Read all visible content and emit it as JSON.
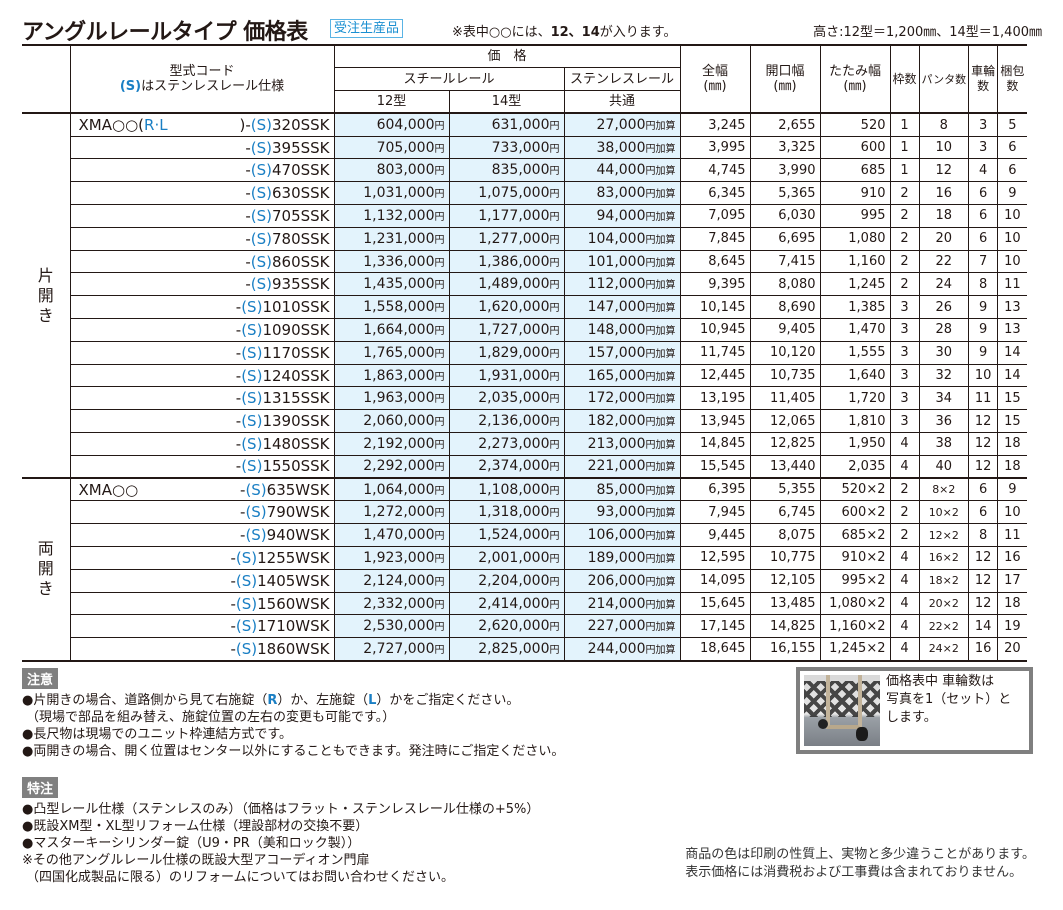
{
  "header": {
    "title": "アングルレールタイプ 価格表",
    "badge": "受注生産品",
    "note_prefix": "※表中○○には、",
    "note_bold": "12、14",
    "note_suffix": "が入ります。",
    "height_note": "高さ:12型＝1,200㎜、14型＝1,400㎜"
  },
  "table": {
    "headers": {
      "model_line1": "型式コード",
      "model_line2_s": "(S)",
      "model_line2_rest": "はステンレスレール仕様",
      "price": "価　格",
      "steel_rail": "スチールレール",
      "stainless_rail": "ステンレスレール",
      "type12": "12型",
      "type14": "14型",
      "common": "共通",
      "total_width": "全幅",
      "opening_width": "開口幅",
      "folded_width": "たたみ幅",
      "unit_mm": "(㎜)",
      "frames": "枠数",
      "pantographs": "パンタ数",
      "wheels_1": "車輪",
      "wheels_2": "数",
      "packages_1": "梱包",
      "packages_2": "数"
    },
    "yen": "円",
    "addon_suffix": "円加算",
    "groups": [
      {
        "category": [
          "片",
          "開",
          "き"
        ],
        "rows": [
          {
            "prefix": "XMA○○(",
            "rl": "R·L",
            "mid": ")-",
            "s": "(S)",
            "code": "320SSK",
            "p12": "604,000",
            "p14": "631,000",
            "addon": "27,000",
            "total": "3,245",
            "open": "2,655",
            "fold": "520",
            "frames": "1",
            "panta": "8",
            "wheels": "3",
            "packs": "5"
          },
          {
            "prefix": "",
            "rl": "",
            "mid": "-",
            "s": "(S)",
            "code": "395SSK",
            "p12": "705,000",
            "p14": "733,000",
            "addon": "38,000",
            "total": "3,995",
            "open": "3,325",
            "fold": "600",
            "frames": "1",
            "panta": "10",
            "wheels": "3",
            "packs": "6"
          },
          {
            "prefix": "",
            "rl": "",
            "mid": "-",
            "s": "(S)",
            "code": "470SSK",
            "p12": "803,000",
            "p14": "835,000",
            "addon": "44,000",
            "total": "4,745",
            "open": "3,990",
            "fold": "685",
            "frames": "1",
            "panta": "12",
            "wheels": "4",
            "packs": "6"
          },
          {
            "prefix": "",
            "rl": "",
            "mid": "-",
            "s": "(S)",
            "code": "630SSK",
            "p12": "1,031,000",
            "p14": "1,075,000",
            "addon": "83,000",
            "total": "6,345",
            "open": "5,365",
            "fold": "910",
            "frames": "2",
            "panta": "16",
            "wheels": "6",
            "packs": "9"
          },
          {
            "prefix": "",
            "rl": "",
            "mid": "-",
            "s": "(S)",
            "code": "705SSK",
            "p12": "1,132,000",
            "p14": "1,177,000",
            "addon": "94,000",
            "total": "7,095",
            "open": "6,030",
            "fold": "995",
            "frames": "2",
            "panta": "18",
            "wheels": "6",
            "packs": "10"
          },
          {
            "prefix": "",
            "rl": "",
            "mid": "-",
            "s": "(S)",
            "code": "780SSK",
            "p12": "1,231,000",
            "p14": "1,277,000",
            "addon": "104,000",
            "total": "7,845",
            "open": "6,695",
            "fold": "1,080",
            "frames": "2",
            "panta": "20",
            "wheels": "6",
            "packs": "10"
          },
          {
            "prefix": "",
            "rl": "",
            "mid": "-",
            "s": "(S)",
            "code": "860SSK",
            "p12": "1,336,000",
            "p14": "1,386,000",
            "addon": "101,000",
            "total": "8,645",
            "open": "7,415",
            "fold": "1,160",
            "frames": "2",
            "panta": "22",
            "wheels": "7",
            "packs": "10"
          },
          {
            "prefix": "",
            "rl": "",
            "mid": "-",
            "s": "(S)",
            "code": "935SSK",
            "p12": "1,435,000",
            "p14": "1,489,000",
            "addon": "112,000",
            "total": "9,395",
            "open": "8,080",
            "fold": "1,245",
            "frames": "2",
            "panta": "24",
            "wheels": "8",
            "packs": "11"
          },
          {
            "prefix": "",
            "rl": "",
            "mid": "-",
            "s": "(S)",
            "code": "1010SSK",
            "p12": "1,558,000",
            "p14": "1,620,000",
            "addon": "147,000",
            "total": "10,145",
            "open": "8,690",
            "fold": "1,385",
            "frames": "3",
            "panta": "26",
            "wheels": "9",
            "packs": "13"
          },
          {
            "prefix": "",
            "rl": "",
            "mid": "-",
            "s": "(S)",
            "code": "1090SSK",
            "p12": "1,664,000",
            "p14": "1,727,000",
            "addon": "148,000",
            "total": "10,945",
            "open": "9,405",
            "fold": "1,470",
            "frames": "3",
            "panta": "28",
            "wheels": "9",
            "packs": "13"
          },
          {
            "prefix": "",
            "rl": "",
            "mid": "-",
            "s": "(S)",
            "code": "1170SSK",
            "p12": "1,765,000",
            "p14": "1,829,000",
            "addon": "157,000",
            "total": "11,745",
            "open": "10,120",
            "fold": "1,555",
            "frames": "3",
            "panta": "30",
            "wheels": "9",
            "packs": "14"
          },
          {
            "prefix": "",
            "rl": "",
            "mid": "-",
            "s": "(S)",
            "code": "1240SSK",
            "p12": "1,863,000",
            "p14": "1,931,000",
            "addon": "165,000",
            "total": "12,445",
            "open": "10,735",
            "fold": "1,640",
            "frames": "3",
            "panta": "32",
            "wheels": "10",
            "packs": "14"
          },
          {
            "prefix": "",
            "rl": "",
            "mid": "-",
            "s": "(S)",
            "code": "1315SSK",
            "p12": "1,963,000",
            "p14": "2,035,000",
            "addon": "172,000",
            "total": "13,195",
            "open": "11,405",
            "fold": "1,720",
            "frames": "3",
            "panta": "34",
            "wheels": "11",
            "packs": "15"
          },
          {
            "prefix": "",
            "rl": "",
            "mid": "-",
            "s": "(S)",
            "code": "1390SSK",
            "p12": "2,060,000",
            "p14": "2,136,000",
            "addon": "182,000",
            "total": "13,945",
            "open": "12,065",
            "fold": "1,810",
            "frames": "3",
            "panta": "36",
            "wheels": "12",
            "packs": "15"
          },
          {
            "prefix": "",
            "rl": "",
            "mid": "-",
            "s": "(S)",
            "code": "1480SSK",
            "p12": "2,192,000",
            "p14": "2,273,000",
            "addon": "213,000",
            "total": "14,845",
            "open": "12,825",
            "fold": "1,950",
            "frames": "4",
            "panta": "38",
            "wheels": "12",
            "packs": "18"
          },
          {
            "prefix": "",
            "rl": "",
            "mid": "-",
            "s": "(S)",
            "code": "1550SSK",
            "p12": "2,292,000",
            "p14": "2,374,000",
            "addon": "221,000",
            "total": "15,545",
            "open": "13,440",
            "fold": "2,035",
            "frames": "4",
            "panta": "40",
            "wheels": "12",
            "packs": "18"
          }
        ]
      },
      {
        "category": [
          "両",
          "開",
          "き"
        ],
        "rows": [
          {
            "prefix": "XMA○○",
            "rl": "",
            "mid": "-",
            "s": "(S)",
            "code": "635WSK",
            "p12": "1,064,000",
            "p14": "1,108,000",
            "addon": "85,000",
            "total": "6,395",
            "open": "5,355",
            "fold": "520×2",
            "frames": "2",
            "panta": "8×2",
            "wheels": "6",
            "packs": "9"
          },
          {
            "prefix": "",
            "rl": "",
            "mid": "-",
            "s": "(S)",
            "code": "790WSK",
            "p12": "1,272,000",
            "p14": "1,318,000",
            "addon": "93,000",
            "total": "7,945",
            "open": "6,745",
            "fold": "600×2",
            "frames": "2",
            "panta": "10×2",
            "wheels": "6",
            "packs": "10"
          },
          {
            "prefix": "",
            "rl": "",
            "mid": "-",
            "s": "(S)",
            "code": "940WSK",
            "p12": "1,470,000",
            "p14": "1,524,000",
            "addon": "106,000",
            "total": "9,445",
            "open": "8,075",
            "fold": "685×2",
            "frames": "2",
            "panta": "12×2",
            "wheels": "8",
            "packs": "11"
          },
          {
            "prefix": "",
            "rl": "",
            "mid": "-",
            "s": "(S)",
            "code": "1255WSK",
            "p12": "1,923,000",
            "p14": "2,001,000",
            "addon": "189,000",
            "total": "12,595",
            "open": "10,775",
            "fold": "910×2",
            "frames": "4",
            "panta": "16×2",
            "wheels": "12",
            "packs": "16"
          },
          {
            "prefix": "",
            "rl": "",
            "mid": "-",
            "s": "(S)",
            "code": "1405WSK",
            "p12": "2,124,000",
            "p14": "2,204,000",
            "addon": "206,000",
            "total": "14,095",
            "open": "12,105",
            "fold": "995×2",
            "frames": "4",
            "panta": "18×2",
            "wheels": "12",
            "packs": "17"
          },
          {
            "prefix": "",
            "rl": "",
            "mid": "-",
            "s": "(S)",
            "code": "1560WSK",
            "p12": "2,332,000",
            "p14": "2,414,000",
            "addon": "214,000",
            "total": "15,645",
            "open": "13,485",
            "fold": "1,080×2",
            "frames": "4",
            "panta": "20×2",
            "wheels": "12",
            "packs": "18"
          },
          {
            "prefix": "",
            "rl": "",
            "mid": "-",
            "s": "(S)",
            "code": "1710WSK",
            "p12": "2,530,000",
            "p14": "2,620,000",
            "addon": "227,000",
            "total": "17,145",
            "open": "14,825",
            "fold": "1,160×2",
            "frames": "4",
            "panta": "22×2",
            "wheels": "14",
            "packs": "19"
          },
          {
            "prefix": "",
            "rl": "",
            "mid": "-",
            "s": "(S)",
            "code": "1860WSK",
            "p12": "2,727,000",
            "p14": "2,825,000",
            "addon": "244,000",
            "total": "18,645",
            "open": "16,155",
            "fold": "1,245×2",
            "frames": "4",
            "panta": "24×2",
            "wheels": "16",
            "packs": "20"
          }
        ]
      }
    ]
  },
  "caution": {
    "label": "注意",
    "lines": [
      {
        "a": "●片開きの場合、道路側から見て右施錠（",
        "b": "R",
        "c": "）か、左施錠（",
        "d": "L",
        "e": "）かをご指定ください。"
      },
      {
        "a": "（現場で部品を組み替え、施錠位置の左右の変更も可能です。）"
      },
      {
        "a": "●長尺物は現場でのユニット枠連結方式です。"
      },
      {
        "a": "●両開きの場合、開く位置はセンター以外にすることもできます。発注時にご指定ください。"
      }
    ]
  },
  "special": {
    "label": "特注",
    "lines": [
      "●凸型レール仕様（ステンレスのみ）（価格はフラット・ステンレスレール仕様の+5%）",
      "●既設XM型・XL型リフォーム仕様（埋設部材の交換不要）",
      "●マスターキーシリンダー錠（U9・PR（美和ロック製））",
      "※その他アングルレール仕様の既設大型アコーディオン門扉",
      "（四国化成製品に限る）のリフォームについてはお問い合わせください。"
    ]
  },
  "photo_note": {
    "lines": [
      "価格表中 車輪数は",
      "写真を1（セット）と",
      "します。"
    ]
  },
  "footer": {
    "lines": [
      "商品の色は印刷の性質上、実物と多少違うことがあります。",
      "表示価格には消費税および工事費は含まれておりません。"
    ]
  },
  "colors": {
    "accent_blue": "#1a7fc4",
    "price_bg": "#e3f3fc",
    "label_gray": "#808080"
  }
}
